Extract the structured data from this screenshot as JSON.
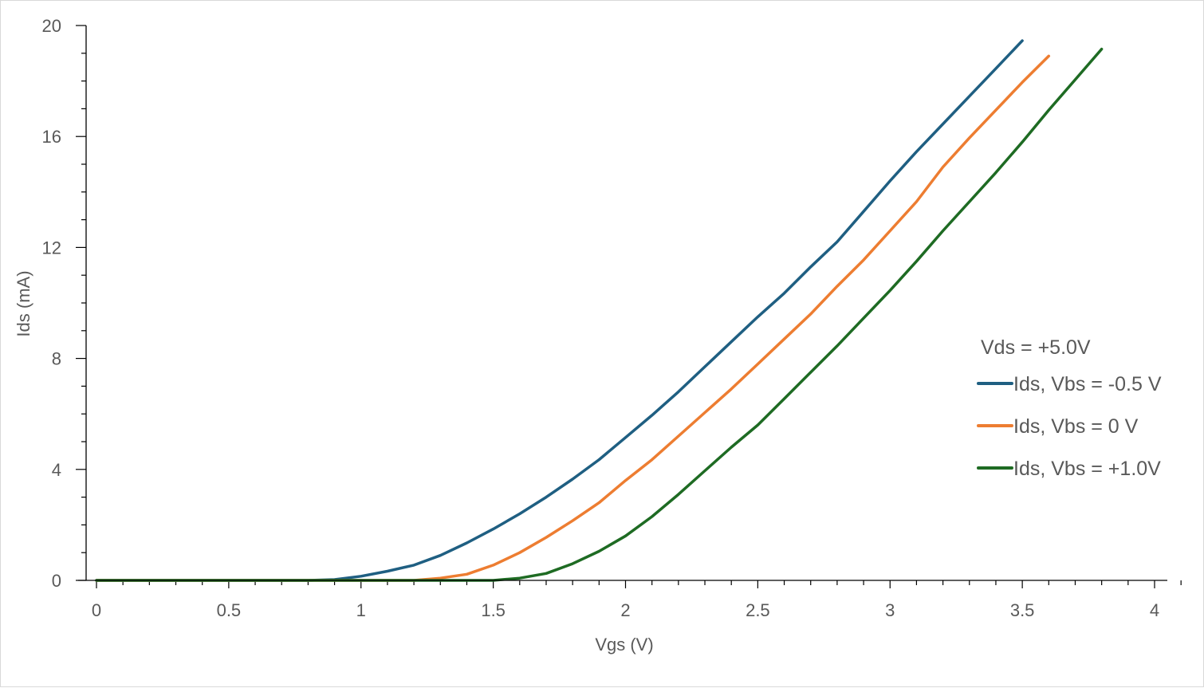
{
  "chart_data": {
    "type": "line",
    "title": "",
    "xlabel": "Vgs (V)",
    "ylabel": "Ids  (mA)",
    "xlim": [
      0,
      4
    ],
    "ylim": [
      0,
      20
    ],
    "x_ticks": [
      "0",
      "0.5",
      "1",
      "1.5",
      "2",
      "2.5",
      "3",
      "3.5",
      "4"
    ],
    "y_ticks": [
      "0",
      "4",
      "8",
      "12",
      "16",
      "20"
    ],
    "grid": false,
    "legend_title": "Vds = +5.0V",
    "legend_position": "right",
    "series": [
      {
        "name": "Ids, Vbs = -0.5 V",
        "color": "#1f5f82",
        "x": [
          0,
          0.1,
          0.2,
          0.3,
          0.4,
          0.5,
          0.6,
          0.7,
          0.8,
          0.9,
          1.0,
          1.1,
          1.2,
          1.3,
          1.4,
          1.5,
          1.6,
          1.7,
          1.8,
          1.9,
          2.0,
          2.1,
          2.2,
          2.3,
          2.4,
          2.5,
          2.6,
          2.7,
          2.8,
          2.9,
          3.0,
          3.1,
          3.2,
          3.3,
          3.4,
          3.5
        ],
        "y": [
          0,
          0,
          0,
          0,
          0,
          0,
          0,
          0,
          0,
          0.03,
          0.15,
          0.33,
          0.55,
          0.9,
          1.35,
          1.85,
          2.4,
          3.0,
          3.65,
          4.35,
          5.15,
          5.95,
          6.8,
          7.7,
          8.6,
          9.5,
          10.35,
          11.3,
          12.2,
          13.3,
          14.4,
          15.45,
          16.45,
          17.45,
          18.45,
          19.45
        ]
      },
      {
        "name": "Ids, Vbs = 0 V",
        "color": "#ed7d31",
        "x": [
          0,
          0.1,
          0.2,
          0.3,
          0.4,
          0.5,
          0.6,
          0.7,
          0.8,
          0.9,
          1.0,
          1.1,
          1.2,
          1.3,
          1.4,
          1.5,
          1.6,
          1.7,
          1.8,
          1.9,
          2.0,
          2.1,
          2.2,
          2.3,
          2.4,
          2.5,
          2.6,
          2.7,
          2.8,
          2.9,
          3.0,
          3.1,
          3.2,
          3.3,
          3.4,
          3.5,
          3.6
        ],
        "y": [
          0,
          0,
          0,
          0,
          0,
          0,
          0,
          0,
          0,
          0,
          0,
          0,
          0,
          0.08,
          0.22,
          0.55,
          1.0,
          1.55,
          2.15,
          2.8,
          3.6,
          4.35,
          5.2,
          6.05,
          6.9,
          7.8,
          8.7,
          9.6,
          10.6,
          11.55,
          12.6,
          13.65,
          14.9,
          15.95,
          16.95,
          17.95,
          18.9
        ]
      },
      {
        "name": "Ids, Vbs = +1.0V",
        "color": "#1e6b23",
        "x": [
          0,
          0.1,
          0.2,
          0.3,
          0.4,
          0.5,
          0.6,
          0.7,
          0.8,
          0.9,
          1.0,
          1.1,
          1.2,
          1.3,
          1.4,
          1.5,
          1.6,
          1.7,
          1.8,
          1.9,
          2.0,
          2.1,
          2.2,
          2.3,
          2.4,
          2.5,
          2.6,
          2.7,
          2.8,
          2.9,
          3.0,
          3.1,
          3.2,
          3.3,
          3.4,
          3.5,
          3.6,
          3.7,
          3.8
        ],
        "y": [
          0,
          0,
          0,
          0,
          0,
          0,
          0,
          0,
          0,
          0,
          0,
          0,
          0,
          0,
          0,
          0,
          0.08,
          0.25,
          0.6,
          1.05,
          1.6,
          2.3,
          3.1,
          3.95,
          4.8,
          5.6,
          6.55,
          7.5,
          8.45,
          9.45,
          10.45,
          11.5,
          12.6,
          13.65,
          14.7,
          15.8,
          16.95,
          18.05,
          19.15
        ]
      }
    ]
  }
}
